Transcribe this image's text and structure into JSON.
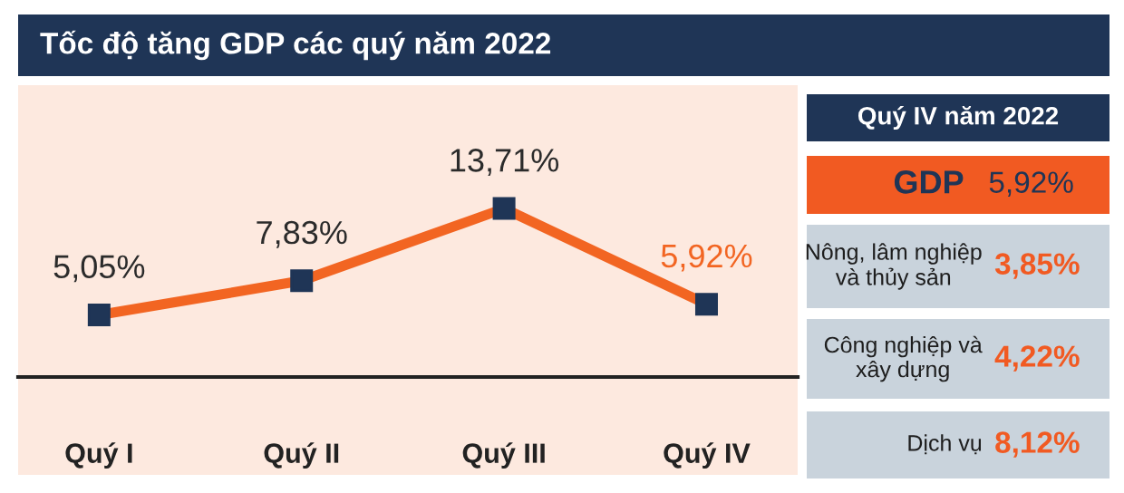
{
  "chart_data": [
    {
      "type": "line",
      "title": "Tốc độ tăng GDP các quý năm 2022",
      "categories": [
        "Quý I",
        "Quý II",
        "Quý III",
        "Quý IV"
      ],
      "series": [
        {
          "color": "#f26522",
          "values": [
            5.05,
            7.83,
            13.71,
            5.92
          ],
          "value_labels": [
            "5,05%",
            "7,83%",
            "13,71%",
            "5,92%"
          ]
        }
      ],
      "marker": "square",
      "line_style": "solid",
      "grid": false,
      "legend": false,
      "tick_labels": "x"
    },
    {
      "type": "other",
      "title": "Quý IV năm 2022",
      "categories": [
        "GDP",
        "Nông, lâm nghiệp\nvà thủy sản",
        "Công nghiệp và\nxây dựng",
        "Dịch vụ"
      ],
      "annotations": [
        "5,92%",
        "3,85%",
        "4,22%",
        "8,12%"
      ],
      "colors": [
        "#f15a22",
        "#c9d3dc",
        "#c9d3dc",
        "#c9d3dc"
      ]
    }
  ]
}
